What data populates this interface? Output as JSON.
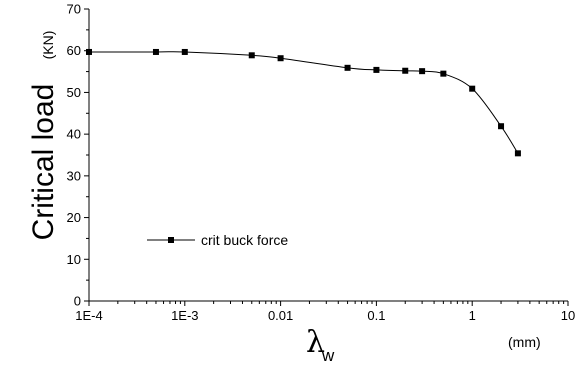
{
  "chart_data": {
    "type": "line",
    "xscale": "log",
    "xlim": [
      "1E-4",
      "10"
    ],
    "ylim": [
      0,
      70
    ],
    "xticks": [
      "1E-4",
      "1E-3",
      "0.01",
      "0.1",
      "1",
      "10"
    ],
    "yticks": [
      "0",
      "10",
      "20",
      "30",
      "40",
      "50",
      "60",
      "70"
    ],
    "ylabel": "Critical load",
    "ylabel_unit": "(KN)",
    "xlabel_symbol": "λ",
    "xlabel_subscript": "w",
    "xlabel_unit": "(mm)",
    "legend": "crit buck force",
    "legend_position": "bottom-left",
    "grid": false,
    "series": [
      {
        "name": "crit buck force",
        "marker": "square",
        "color": "#000000",
        "x": [
          0.0001,
          0.0005,
          0.001,
          0.005,
          0.01,
          0.05,
          0.1,
          0.2,
          0.3,
          0.5,
          1,
          2,
          3
        ],
        "y": [
          59.7,
          59.7,
          59.7,
          58.9,
          58.2,
          55.9,
          55.4,
          55.2,
          55.1,
          54.5,
          50.9,
          41.9,
          35.4
        ]
      }
    ]
  }
}
